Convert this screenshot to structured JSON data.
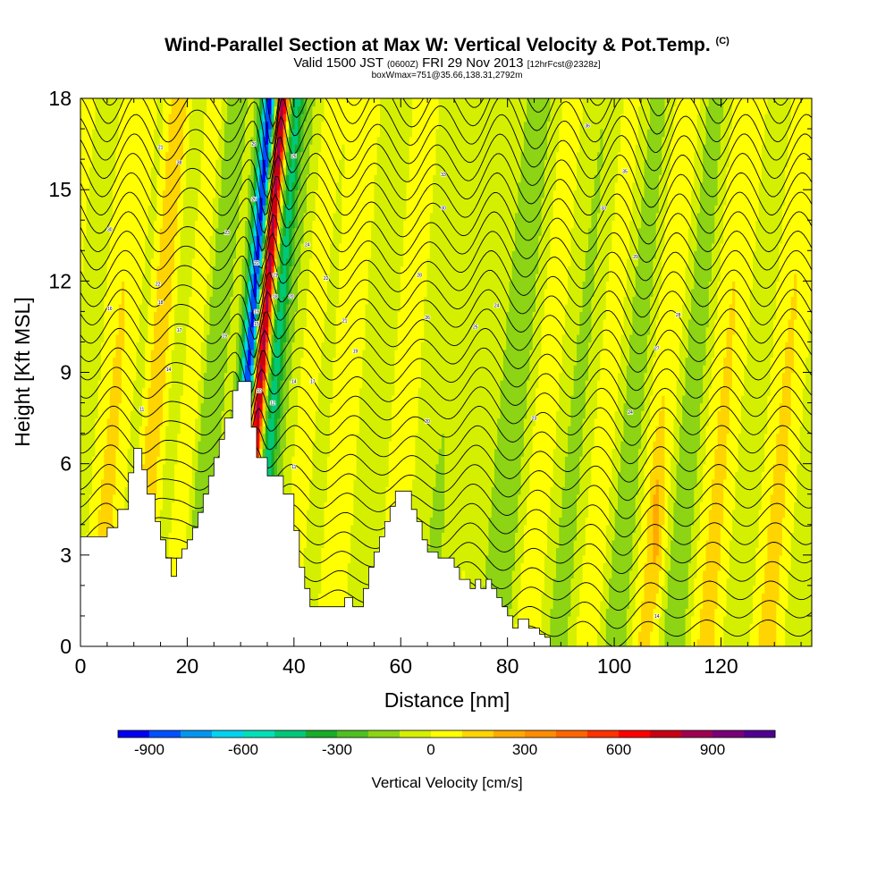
{
  "chart_data": {
    "type": "heatmap",
    "title": "Wind-Parallel Section at Max W: Vertical Velocity & Pot.Temp.",
    "title_mark": "(C)",
    "subtitle_main": "Valid 1500 JST",
    "subtitle_utc": "(0600Z)",
    "subtitle_date": "FRI 29 Nov 2013",
    "subtitle_fcst": "[12hrFcst@2328z]",
    "subtitle_box": "boxWmax=751@35.66,138.31,2792m",
    "xlabel": "Distance [nm]",
    "ylabel": "Height [Kft MSL]",
    "xlim": [
      0,
      137
    ],
    "ylim": [
      0,
      18
    ],
    "x_ticks": [
      0,
      20,
      40,
      60,
      80,
      100,
      120
    ],
    "y_ticks": [
      0,
      3,
      6,
      9,
      12,
      15,
      18
    ],
    "colorbar": {
      "label": "Vertical Velocity [cm/s]",
      "range": [
        -1000,
        1100
      ],
      "step": 100,
      "tick_values": [
        -900,
        -600,
        -300,
        0,
        300,
        600,
        900
      ],
      "tick_labels": [
        "-900",
        "-600",
        "-300",
        "0",
        "300",
        "600",
        "900"
      ],
      "colors": [
        "#0000f0",
        "#0050ff",
        "#0096f0",
        "#00d2f0",
        "#00e0b8",
        "#00c878",
        "#18ad28",
        "#50c020",
        "#8cd414",
        "#d4f000",
        "#ffff00",
        "#ffd400",
        "#ffaa00",
        "#ff8c00",
        "#ff6400",
        "#ff3200",
        "#ff0000",
        "#c80014",
        "#a00050",
        "#780078",
        "#500090"
      ]
    },
    "terrain_kft": [
      [
        0,
        3.6
      ],
      [
        5,
        3.6
      ],
      [
        5,
        3.9
      ],
      [
        7,
        3.9
      ],
      [
        7,
        4.5
      ],
      [
        9,
        4.5
      ],
      [
        9,
        5.7
      ],
      [
        10,
        5.7
      ],
      [
        10,
        6.5
      ],
      [
        11.5,
        6.5
      ],
      [
        11.5,
        5.8
      ],
      [
        12.5,
        5.8
      ],
      [
        12.5,
        5.0
      ],
      [
        14,
        5.0
      ],
      [
        14,
        4.1
      ],
      [
        15,
        4.1
      ],
      [
        15,
        3.5
      ],
      [
        16,
        3.5
      ],
      [
        16,
        2.9
      ],
      [
        17,
        2.9
      ],
      [
        17,
        2.3
      ],
      [
        18,
        2.3
      ],
      [
        18,
        2.9
      ],
      [
        19,
        2.9
      ],
      [
        19,
        3.2
      ],
      [
        20,
        3.2
      ],
      [
        20,
        3.5
      ],
      [
        21,
        3.5
      ],
      [
        21,
        3.9
      ],
      [
        22,
        3.9
      ],
      [
        22,
        4.4
      ],
      [
        23,
        4.4
      ],
      [
        23,
        5.0
      ],
      [
        24,
        5.0
      ],
      [
        24,
        5.6
      ],
      [
        25,
        5.6
      ],
      [
        25,
        6.2
      ],
      [
        26,
        6.2
      ],
      [
        26,
        6.8
      ],
      [
        27,
        6.8
      ],
      [
        27,
        7.5
      ],
      [
        28.5,
        7.5
      ],
      [
        28.5,
        8.4
      ],
      [
        29.5,
        8.4
      ],
      [
        29.5,
        8.7
      ],
      [
        32,
        8.7
      ],
      [
        32,
        7.2
      ],
      [
        33,
        7.2
      ],
      [
        33,
        6.2
      ],
      [
        35,
        6.2
      ],
      [
        35,
        5.6
      ],
      [
        38,
        5.6
      ],
      [
        38,
        5.0
      ],
      [
        40,
        5.0
      ],
      [
        40,
        3.8
      ],
      [
        41,
        3.8
      ],
      [
        41,
        2.6
      ],
      [
        42,
        2.6
      ],
      [
        42,
        1.9
      ],
      [
        43,
        1.9
      ],
      [
        43,
        1.3
      ],
      [
        49.5,
        1.3
      ],
      [
        49.5,
        1.6
      ],
      [
        51,
        1.6
      ],
      [
        51,
        1.3
      ],
      [
        53,
        1.3
      ],
      [
        53,
        1.9
      ],
      [
        54,
        1.9
      ],
      [
        54,
        2.6
      ],
      [
        55,
        2.6
      ],
      [
        55,
        3.1
      ],
      [
        56,
        3.1
      ],
      [
        56,
        3.6
      ],
      [
        57,
        3.6
      ],
      [
        57,
        4.1
      ],
      [
        58,
        4.1
      ],
      [
        58,
        4.6
      ],
      [
        59,
        4.6
      ],
      [
        59,
        5.1
      ],
      [
        62,
        5.1
      ],
      [
        62,
        4.5
      ],
      [
        63,
        4.5
      ],
      [
        63,
        4.1
      ],
      [
        64,
        4.1
      ],
      [
        64,
        3.5
      ],
      [
        65,
        3.5
      ],
      [
        65,
        3.1
      ],
      [
        67,
        3.1
      ],
      [
        67,
        2.9
      ],
      [
        70,
        2.9
      ],
      [
        70,
        2.6
      ],
      [
        71,
        2.6
      ],
      [
        71,
        2.2
      ],
      [
        73,
        2.2
      ],
      [
        73,
        1.9
      ],
      [
        74,
        1.9
      ],
      [
        74,
        2.2
      ],
      [
        75,
        2.2
      ],
      [
        75,
        1.9
      ],
      [
        76,
        1.9
      ],
      [
        76,
        2.2
      ],
      [
        77,
        2.2
      ],
      [
        77,
        1.9
      ],
      [
        78,
        1.9
      ],
      [
        78,
        1.6
      ],
      [
        79,
        1.6
      ],
      [
        79,
        1.3
      ],
      [
        80,
        1.3
      ],
      [
        80,
        1.0
      ],
      [
        81,
        1.0
      ],
      [
        81,
        0.6
      ],
      [
        82,
        0.6
      ],
      [
        82,
        0.9
      ],
      [
        84,
        0.9
      ],
      [
        84,
        0.6
      ],
      [
        86,
        0.6
      ],
      [
        86,
        0.4
      ],
      [
        87,
        0.4
      ],
      [
        87,
        0.3
      ],
      [
        88,
        0.3
      ],
      [
        88,
        0
      ],
      [
        137,
        0
      ],
      [
        137,
        0
      ],
      [
        0,
        0
      ]
    ],
    "theta_contour_labels": [
      {
        "x": 5.5,
        "y": 13.7,
        "t": "30"
      },
      {
        "x": 5.5,
        "y": 11.1,
        "t": "16"
      },
      {
        "x": 11.5,
        "y": 7.8,
        "t": "11"
      },
      {
        "x": 15,
        "y": 16.4,
        "t": "21"
      },
      {
        "x": 18.5,
        "y": 15.9,
        "t": "38"
      },
      {
        "x": 14.5,
        "y": 11.9,
        "t": "22"
      },
      {
        "x": 15,
        "y": 11.3,
        "t": "18"
      },
      {
        "x": 18.5,
        "y": 10.4,
        "t": "17"
      },
      {
        "x": 16.5,
        "y": 9.1,
        "t": "14"
      },
      {
        "x": 27.5,
        "y": 13.6,
        "t": "23"
      },
      {
        "x": 27,
        "y": 10.2,
        "t": "19"
      },
      {
        "x": 32.5,
        "y": 16.5,
        "t": "29"
      },
      {
        "x": 32.5,
        "y": 14.7,
        "t": "26"
      },
      {
        "x": 33,
        "y": 12.6,
        "t": "22"
      },
      {
        "x": 36.5,
        "y": 12.2,
        "t": "21"
      },
      {
        "x": 36.5,
        "y": 11.5,
        "t": "18"
      },
      {
        "x": 33,
        "y": 11.0,
        "t": "19"
      },
      {
        "x": 33,
        "y": 10.6,
        "t": "15"
      },
      {
        "x": 39.5,
        "y": 11.5,
        "t": "20"
      },
      {
        "x": 40,
        "y": 16.1,
        "t": "25"
      },
      {
        "x": 42.5,
        "y": 13.2,
        "t": "24"
      },
      {
        "x": 46,
        "y": 12.1,
        "t": "22"
      },
      {
        "x": 49.5,
        "y": 10.7,
        "t": "21"
      },
      {
        "x": 51.5,
        "y": 9.7,
        "t": "19"
      },
      {
        "x": 43.5,
        "y": 8.7,
        "t": "17"
      },
      {
        "x": 40,
        "y": 8.7,
        "t": "14"
      },
      {
        "x": 36,
        "y": 8.0,
        "t": "12"
      },
      {
        "x": 33.5,
        "y": 8.4,
        "t": "10"
      },
      {
        "x": 40,
        "y": 5.9,
        "t": "11"
      },
      {
        "x": 68,
        "y": 15.5,
        "t": "33"
      },
      {
        "x": 68,
        "y": 14.4,
        "t": "30"
      },
      {
        "x": 63.5,
        "y": 12.2,
        "t": "28"
      },
      {
        "x": 65,
        "y": 10.8,
        "t": "26"
      },
      {
        "x": 74,
        "y": 10.5,
        "t": "25"
      },
      {
        "x": 78,
        "y": 11.2,
        "t": "24"
      },
      {
        "x": 65,
        "y": 7.4,
        "t": "20"
      },
      {
        "x": 85,
        "y": 7.5,
        "t": "23"
      },
      {
        "x": 95,
        "y": 17.1,
        "t": "36"
      },
      {
        "x": 102,
        "y": 15.6,
        "t": "35"
      },
      {
        "x": 98,
        "y": 14.4,
        "t": "33"
      },
      {
        "x": 104,
        "y": 12.8,
        "t": "29"
      },
      {
        "x": 112,
        "y": 10.9,
        "t": "28"
      },
      {
        "x": 108,
        "y": 9.8,
        "t": "27"
      },
      {
        "x": 103,
        "y": 7.7,
        "t": "24"
      },
      {
        "x": 108,
        "y": 1.0,
        "t": "14"
      }
    ]
  }
}
